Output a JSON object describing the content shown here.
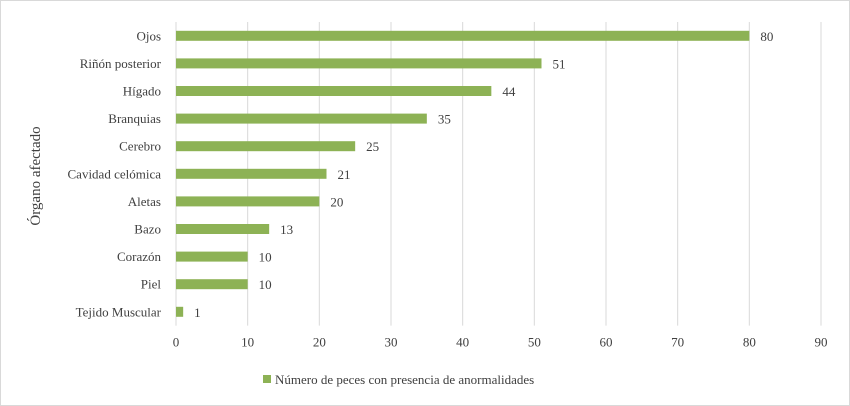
{
  "chart_data": {
    "type": "bar",
    "orientation": "horizontal",
    "title": "",
    "ylabel": "Órgano afectado",
    "xlabel": "",
    "xlim": [
      0,
      90
    ],
    "xticks": [
      0,
      10,
      20,
      30,
      40,
      50,
      60,
      70,
      80,
      90
    ],
    "grid": true,
    "legend_position": "bottom",
    "categories": [
      "Ojos",
      "Riñón posterior",
      "Hígado",
      "Branquias",
      "Cerebro",
      "Cavidad celómica",
      "Aletas",
      "Bazo",
      "Corazón",
      "Piel",
      "Tejido Muscular"
    ],
    "series": [
      {
        "name": "Número de peces con presencia de anormalidades",
        "color": "#8db255",
        "values": [
          80,
          51,
          44,
          35,
          25,
          21,
          20,
          13,
          10,
          10,
          1
        ]
      }
    ]
  }
}
